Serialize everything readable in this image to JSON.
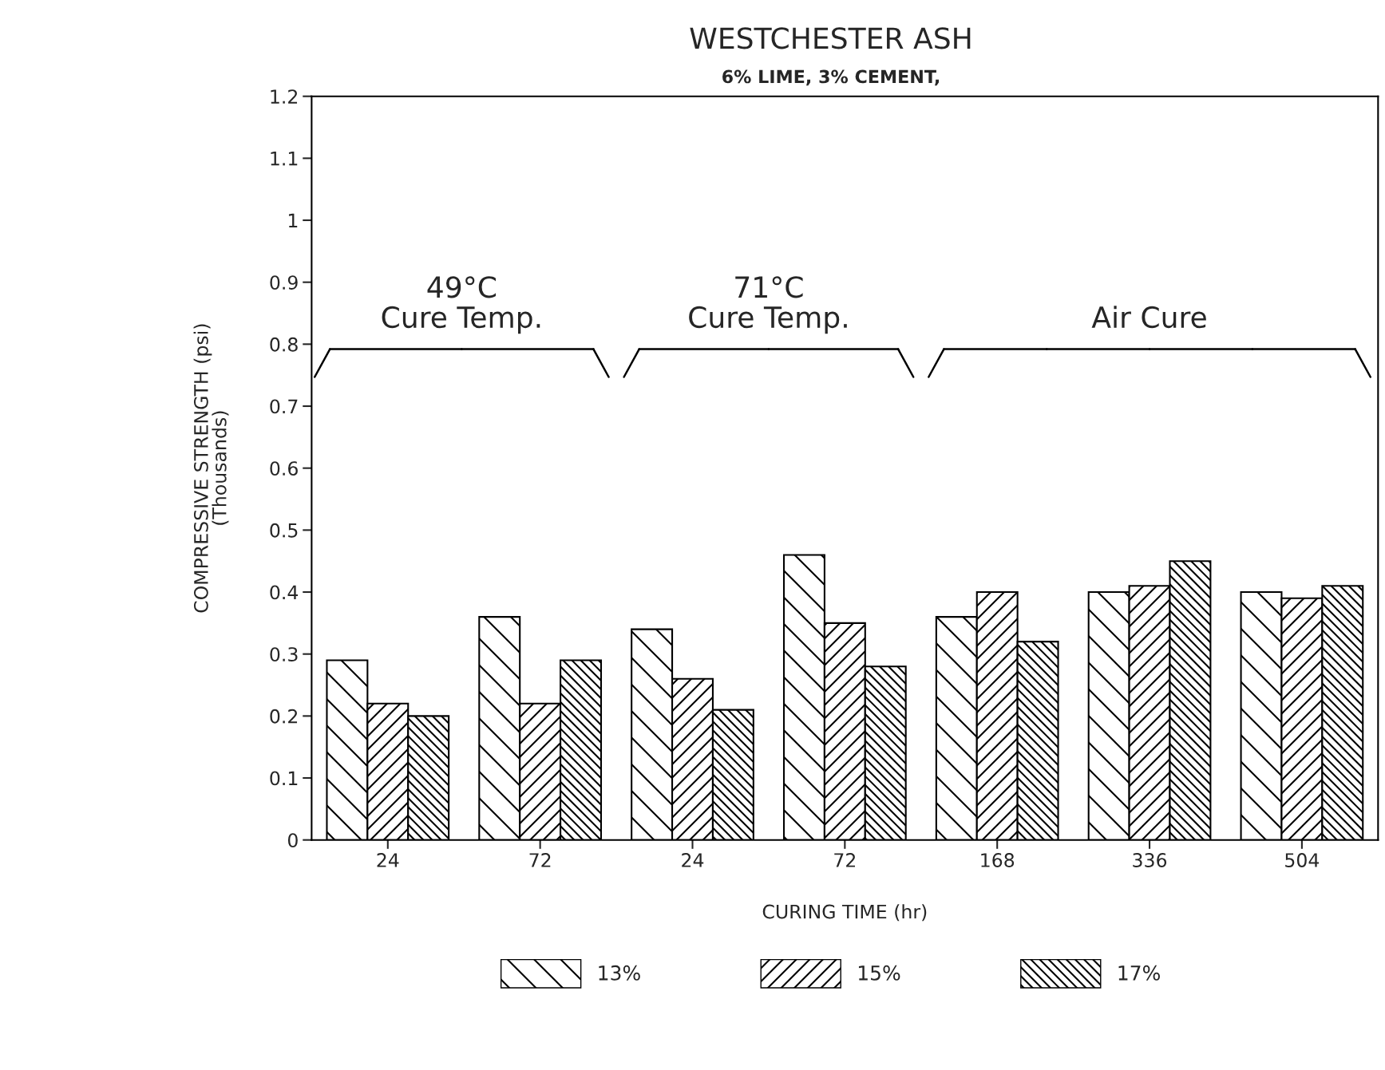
{
  "chart_data": {
    "type": "bar",
    "title": "WESTCHESTER ASH",
    "subtitle": "6% LIME, 3% CEMENT,",
    "xlabel": "CURING TIME (hr)",
    "ylabel": "COMPRESSIVE STRENGTH (psi)\n(Thousands)",
    "categories": [
      "24",
      "72",
      "24",
      "72",
      "168",
      "336",
      "504"
    ],
    "series": [
      {
        "name": "13%",
        "color": "#000000",
        "values": [
          0.29,
          0.36,
          0.34,
          0.46,
          0.36,
          0.4,
          0.4
        ]
      },
      {
        "name": "15%",
        "color": "#000000",
        "values": [
          0.22,
          0.22,
          0.26,
          0.35,
          0.4,
          0.41,
          0.39
        ]
      },
      {
        "name": "17%",
        "color": "#000000",
        "values": [
          0.2,
          0.29,
          0.21,
          0.28,
          0.32,
          0.45,
          0.41
        ]
      }
    ],
    "ylim": [
      0,
      1.2
    ],
    "yticks": [
      0,
      0.1,
      0.2,
      0.3,
      0.4,
      0.5,
      0.6,
      0.7,
      0.8,
      0.9,
      1,
      1.1,
      1.2
    ],
    "annotations": [
      "49°C\nCure Temp.",
      "71°C\nCure Temp.",
      "Air Cure"
    ],
    "grid": false,
    "legend": "bottom"
  }
}
